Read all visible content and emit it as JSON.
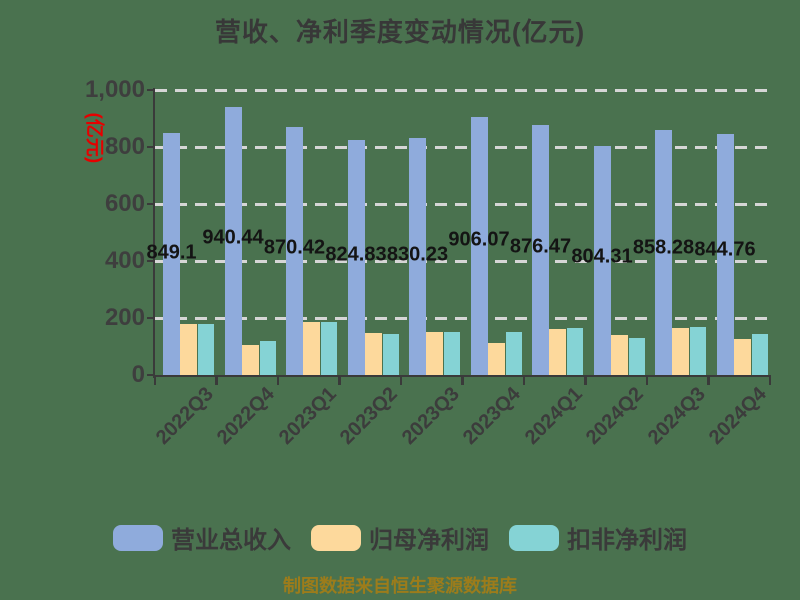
{
  "chart_data": {
    "type": "bar",
    "title": "营收、净利季度变动情况(亿元)",
    "ylabel": "(亿元)",
    "xlabel": "",
    "footer": "制图数据来自恒生聚源数据库",
    "categories": [
      "2022Q3",
      "2022Q4",
      "2023Q1",
      "2023Q2",
      "2023Q3",
      "2023Q4",
      "2024Q1",
      "2024Q2",
      "2024Q3",
      "2024Q4"
    ],
    "series": [
      {
        "name": "营业总收入",
        "color": "#8fabdc",
        "values": [
          849.1,
          940.44,
          870.42,
          824.83,
          830.23,
          906.07,
          876.47,
          804.31,
          858.28,
          844.76
        ],
        "data_labels": true,
        "label_texts": [
          "849.1",
          "940.44",
          "870.42",
          "824.83",
          "830.23",
          "906.07",
          "876.47",
          "804.31",
          "858.28",
          "844.76"
        ]
      },
      {
        "name": "归母净利润",
        "color": "#fdd99c",
        "values": [
          178,
          105,
          185,
          146,
          152,
          114,
          160,
          140,
          165,
          128
        ],
        "data_labels": false
      },
      {
        "name": "扣非净利润",
        "color": "#85d3d5",
        "values": [
          180,
          120,
          185,
          145,
          150,
          150,
          165,
          131,
          167,
          144
        ],
        "data_labels": false
      }
    ],
    "ylim": [
      0,
      1000
    ],
    "yticks": [
      {
        "label": "0",
        "value": 0
      },
      {
        "label": "200",
        "value": 200
      },
      {
        "label": "400",
        "value": 400
      },
      {
        "label": "600",
        "value": 600
      },
      {
        "label": "800",
        "value": 800
      },
      {
        "label": "1,000",
        "value": 1000
      }
    ],
    "grid": "dashed-horizontal",
    "legend_position": "bottom",
    "colors": {
      "background": "#4a724f",
      "title": "#383838",
      "ylabel_red": "#e60000",
      "axis": "#3a3a3a",
      "grid": "#d6d6d6",
      "tick_label": "#3e3e3e",
      "xtick_label": "#3c3c3c",
      "data_label": "#141414",
      "legend_label": "#3a3a3a",
      "footer": "#9c7c1b"
    }
  }
}
